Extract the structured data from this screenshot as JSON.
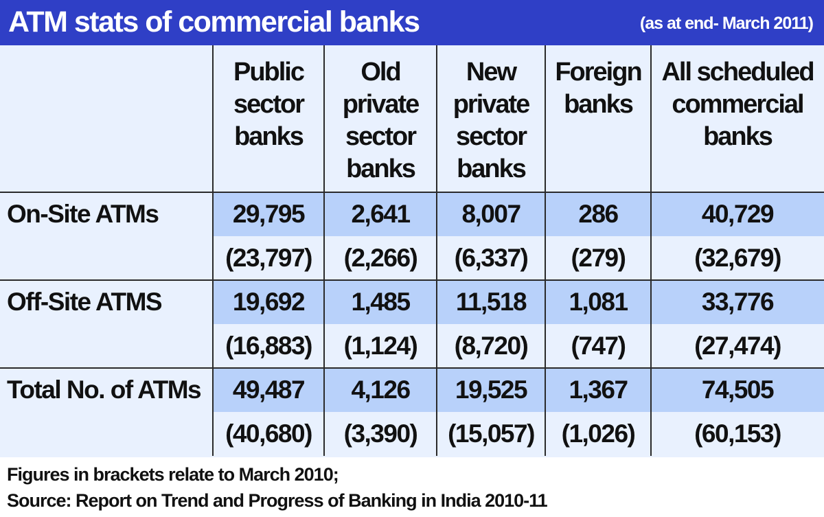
{
  "header": {
    "title": "ATM stats of commercial banks",
    "subtitle": "(as at end- March 2011)"
  },
  "chart_data": {
    "type": "table",
    "columns": [
      {
        "lines": [
          "Public",
          "sector",
          "banks"
        ]
      },
      {
        "lines": [
          "Old",
          "private",
          "sector",
          "banks"
        ]
      },
      {
        "lines": [
          "New",
          "private",
          "sector",
          "banks"
        ]
      },
      {
        "lines": [
          "Foreign",
          "banks"
        ]
      },
      {
        "lines": [
          "All scheduled",
          "commercial",
          "banks"
        ]
      }
    ],
    "rows": [
      {
        "label": "On-Site ATMs",
        "current": [
          "29,795",
          "2,641",
          "8,007",
          "286",
          "40,729"
        ],
        "previous": [
          "(23,797)",
          "(2,266)",
          "(6,337)",
          "(279)",
          "(32,679)"
        ]
      },
      {
        "label": "Off-Site ATMS",
        "current": [
          "19,692",
          "1,485",
          "11,518",
          "1,081",
          "33,776"
        ],
        "previous": [
          "(16,883)",
          "(1,124)",
          "(8,720)",
          "(747)",
          "(27,474)"
        ]
      },
      {
        "label": "Total No. of ATMs",
        "current": [
          "49,487",
          "4,126",
          "19,525",
          "1,367",
          "74,505"
        ],
        "previous": [
          "(40,680)",
          "(3,390)",
          "(15,057)",
          "(1,026)",
          "(60,153)"
        ]
      }
    ]
  },
  "footer": {
    "note": "Figures in brackets  relate to March 2010;",
    "source": "Source:  Report on Trend and Progress of Banking in India 2010-11"
  },
  "colors": {
    "header_bg": "#2f3fc6",
    "table_bg": "#e9f1fe",
    "highlight_bg": "#b8d1fa"
  }
}
